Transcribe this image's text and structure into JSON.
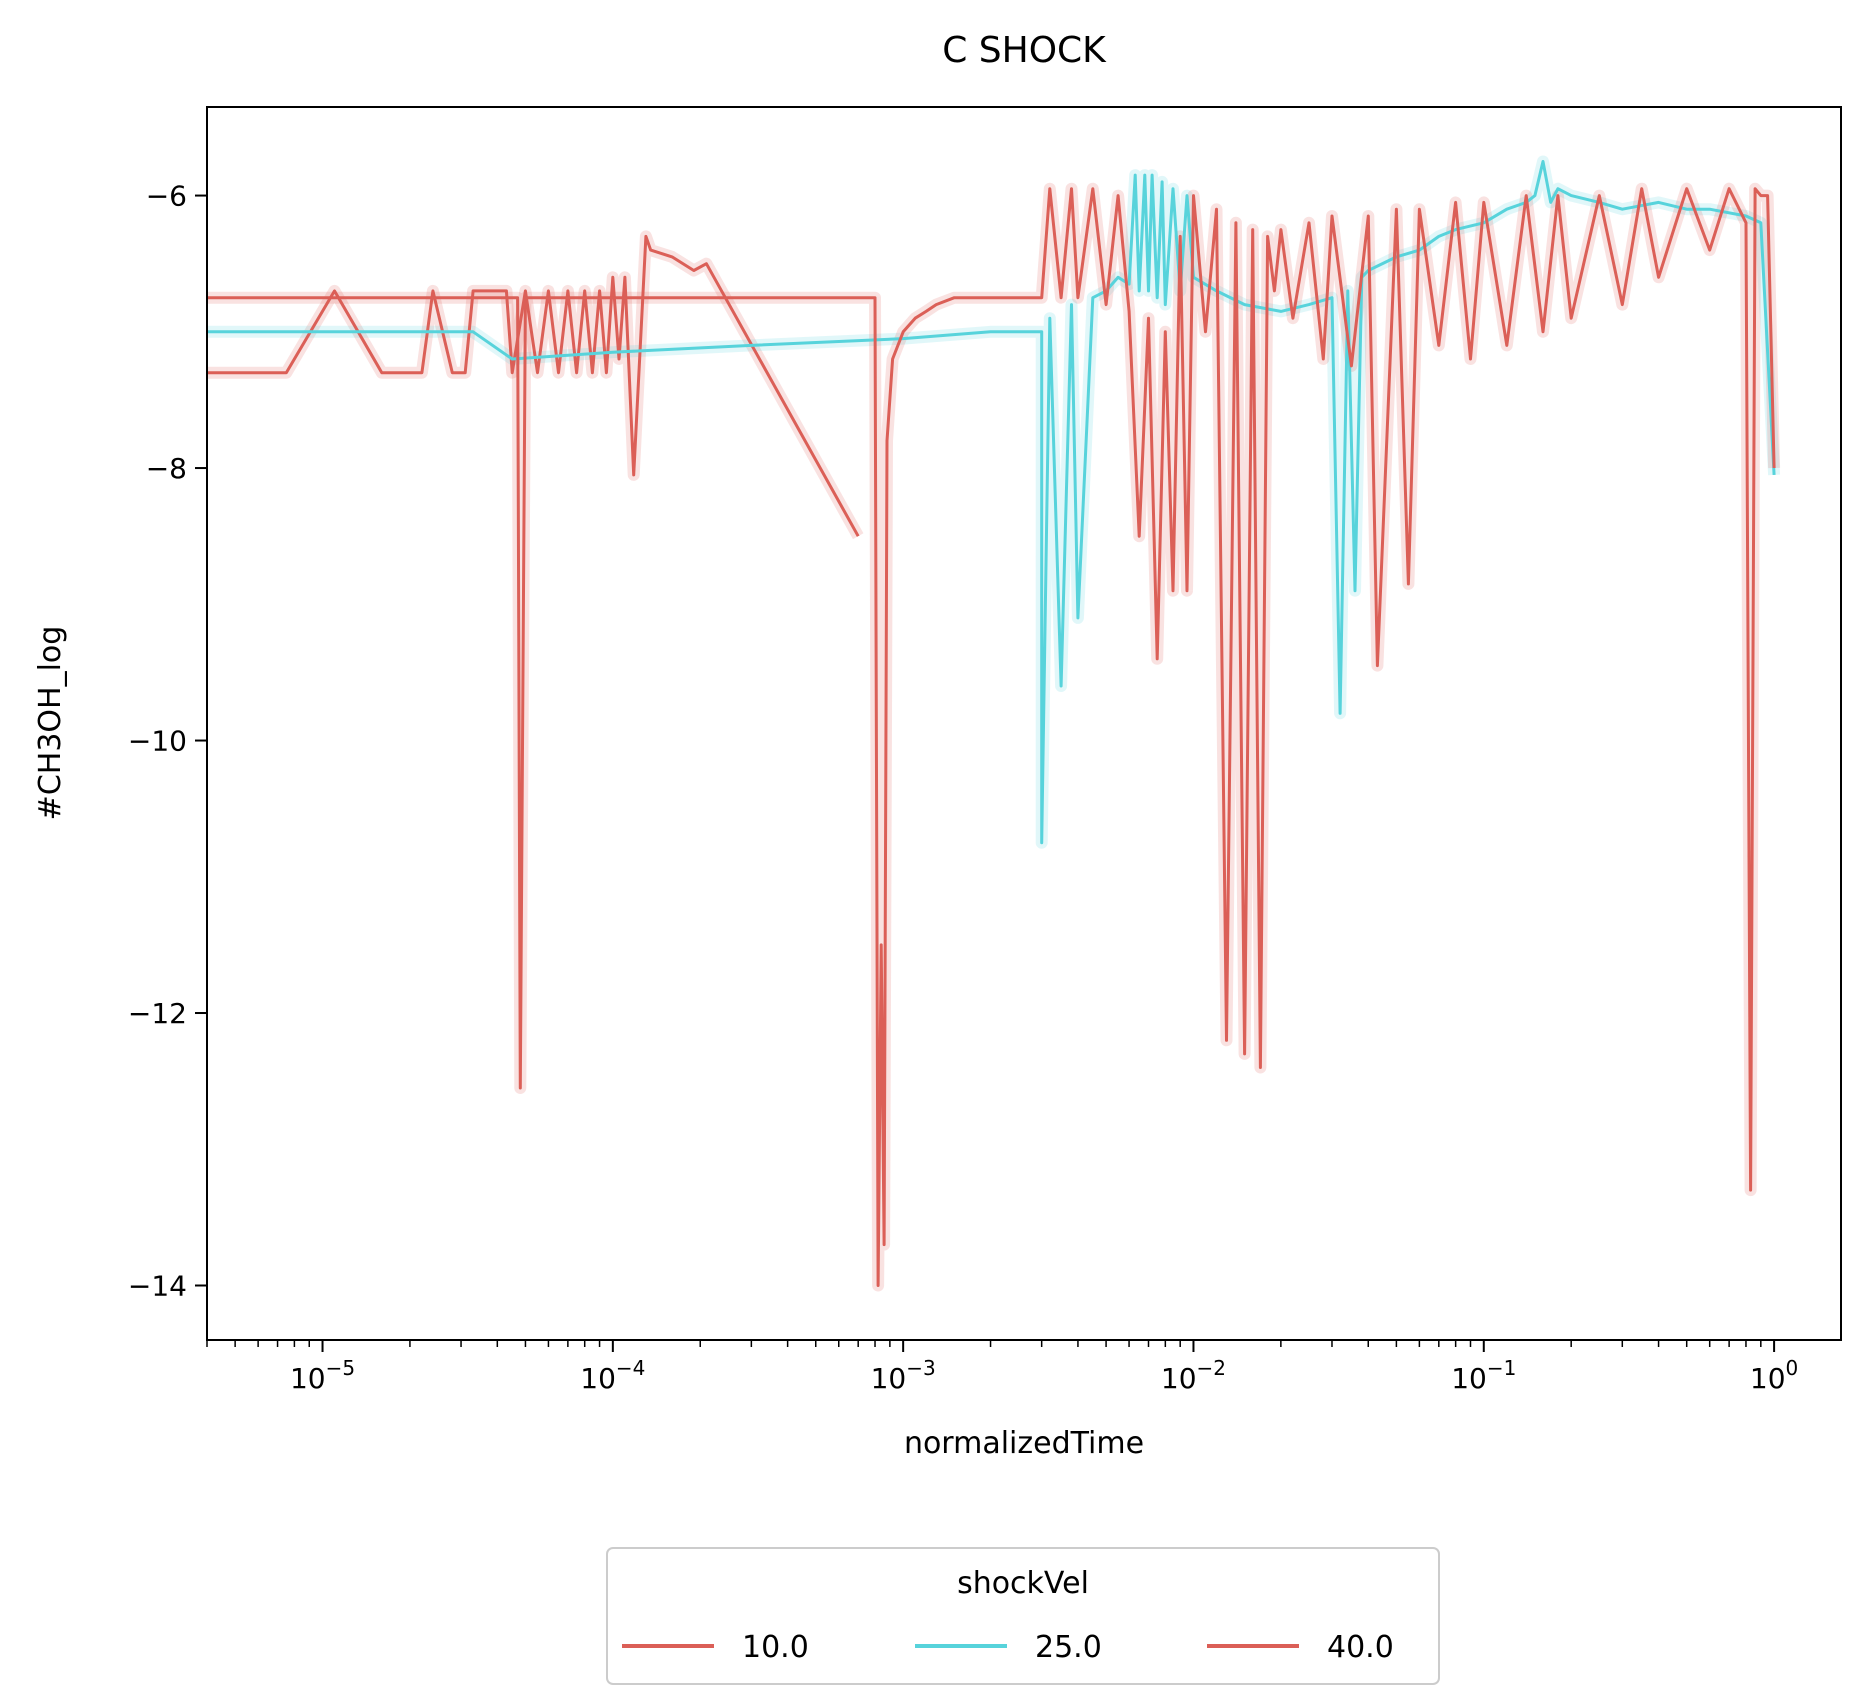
{
  "chart_data": {
    "type": "line",
    "title": "C SHOCK",
    "xlabel": "normalizedTime",
    "ylabel": "#CH3OH_log",
    "xscale": "log",
    "xlim": [
      4e-06,
      1.7
    ],
    "ylim": [
      -14.4,
      -5.35
    ],
    "x_ticks": [
      1e-05,
      0.0001,
      0.001,
      0.01,
      0.1,
      1
    ],
    "x_tick_labels": [
      {
        "base": "10",
        "exp": "−5"
      },
      {
        "base": "10",
        "exp": "−4"
      },
      {
        "base": "10",
        "exp": "−3"
      },
      {
        "base": "10",
        "exp": "−2"
      },
      {
        "base": "10",
        "exp": "−1"
      },
      {
        "base": "10",
        "exp": "0"
      }
    ],
    "y_ticks": [
      -6,
      -8,
      -10,
      -12,
      -14
    ],
    "y_tick_labels": [
      "−6",
      "−8",
      "−10",
      "−12",
      "−14"
    ],
    "grid": false,
    "legend": {
      "title": "shockVel",
      "placement": "bottom-center",
      "entries": [
        "10.0",
        "25.0",
        "40.0"
      ]
    },
    "colors": {
      "10.0": "#db5f57",
      "25.0": "#57d3db",
      "40.0": "#db5f57"
    },
    "series": [
      {
        "name": "10.0",
        "x": [
          4e-06,
          7.5e-06,
          1.1e-05,
          1.6e-05,
          2.2e-05,
          2.4e-05,
          2.8e-05,
          3.1e-05,
          3.3e-05,
          4.3e-05,
          4.5e-05,
          5e-05,
          5.5e-05,
          6e-05,
          6.5e-05,
          7e-05,
          7.5e-05,
          8e-05,
          8.5e-05,
          9e-05,
          9.5e-05,
          0.0001,
          0.000105,
          0.00011,
          0.000118,
          0.00013,
          0.000135,
          0.00016,
          0.00019,
          0.00021,
          0.0007
        ],
        "y": [
          -7.3,
          -7.3,
          -6.7,
          -7.3,
          -7.3,
          -6.7,
          -7.3,
          -7.3,
          -6.7,
          -6.7,
          -7.3,
          -6.7,
          -7.3,
          -6.7,
          -7.3,
          -6.7,
          -7.3,
          -6.7,
          -7.3,
          -6.7,
          -7.3,
          -6.6,
          -7.2,
          -6.6,
          -8.05,
          -6.3,
          -6.4,
          -6.45,
          -6.55,
          -6.5,
          -8.5
        ]
      },
      {
        "name": "25.0",
        "x": [
          4e-06,
          3.3e-05,
          4.5e-05,
          0.0001,
          0.0003,
          0.001,
          0.002,
          0.003,
          0.003,
          0.0032,
          0.0035,
          0.0038,
          0.004,
          0.0045,
          0.005,
          0.0055,
          0.006,
          0.0063,
          0.0065,
          0.0068,
          0.007,
          0.0072,
          0.0075,
          0.0078,
          0.008,
          0.0085,
          0.009,
          0.0095,
          0.01,
          0.012,
          0.015,
          0.02,
          0.025,
          0.03,
          0.032,
          0.034,
          0.036,
          0.038,
          0.04,
          0.05,
          0.06,
          0.07,
          0.08,
          0.1,
          0.12,
          0.14,
          0.15,
          0.16,
          0.17,
          0.18,
          0.2,
          0.25,
          0.3,
          0.4,
          0.5,
          0.6,
          0.8,
          0.9,
          1.0
        ],
        "y": [
          -7.0,
          -7.0,
          -7.2,
          -7.15,
          -7.1,
          -7.05,
          -7.0,
          -7.0,
          -10.75,
          -6.9,
          -9.6,
          -6.8,
          -9.1,
          -6.75,
          -6.7,
          -6.6,
          -6.65,
          -5.85,
          -6.7,
          -5.85,
          -6.7,
          -5.85,
          -6.75,
          -5.9,
          -6.8,
          -5.95,
          -6.7,
          -6.0,
          -6.6,
          -6.7,
          -6.8,
          -6.85,
          -6.8,
          -6.75,
          -9.8,
          -6.7,
          -8.9,
          -6.6,
          -6.55,
          -6.45,
          -6.4,
          -6.3,
          -6.25,
          -6.2,
          -6.1,
          -6.05,
          -6.0,
          -5.75,
          -6.05,
          -5.95,
          -6.0,
          -6.05,
          -6.1,
          -6.05,
          -6.1,
          -6.1,
          -6.15,
          -6.2,
          -8.05
        ]
      },
      {
        "name": "40.0",
        "x": [
          4e-06,
          4.7e-05,
          4.8e-05,
          5e-05,
          0.00025,
          0.0008,
          0.00082,
          0.00084,
          0.00086,
          0.00088,
          0.00092,
          0.001,
          0.0011,
          0.0012,
          0.0013,
          0.0015,
          0.0018,
          0.002,
          0.0023,
          0.0027,
          0.003,
          0.0032,
          0.0035,
          0.0038,
          0.004,
          0.0045,
          0.005,
          0.0055,
          0.006,
          0.0065,
          0.007,
          0.0075,
          0.008,
          0.0085,
          0.009,
          0.0095,
          0.01,
          0.011,
          0.012,
          0.013,
          0.014,
          0.015,
          0.016,
          0.017,
          0.018,
          0.019,
          0.02,
          0.022,
          0.025,
          0.028,
          0.03,
          0.035,
          0.04,
          0.043,
          0.05,
          0.055,
          0.06,
          0.07,
          0.08,
          0.09,
          0.1,
          0.12,
          0.14,
          0.16,
          0.18,
          0.2,
          0.25,
          0.3,
          0.35,
          0.4,
          0.5,
          0.6,
          0.7,
          0.8,
          0.83,
          0.86,
          0.9,
          0.95,
          1.0
        ],
        "y": [
          -6.75,
          -6.75,
          -12.55,
          -6.75,
          -6.75,
          -6.75,
          -14.0,
          -11.5,
          -13.7,
          -7.8,
          -7.2,
          -7.0,
          -6.9,
          -6.85,
          -6.8,
          -6.75,
          -6.75,
          -6.75,
          -6.75,
          -6.75,
          -6.75,
          -5.95,
          -6.75,
          -5.95,
          -6.75,
          -5.95,
          -6.8,
          -6.0,
          -6.85,
          -8.5,
          -6.9,
          -9.4,
          -7.0,
          -8.9,
          -6.3,
          -8.9,
          -6.0,
          -7.0,
          -6.1,
          -12.2,
          -6.2,
          -12.3,
          -6.25,
          -12.4,
          -6.3,
          -6.7,
          -6.25,
          -6.9,
          -6.2,
          -7.2,
          -6.15,
          -7.25,
          -6.15,
          -9.45,
          -6.1,
          -8.85,
          -6.1,
          -7.1,
          -6.05,
          -7.2,
          -6.05,
          -7.1,
          -6.0,
          -7.0,
          -6.0,
          -6.9,
          -6.0,
          -6.8,
          -5.95,
          -6.6,
          -5.95,
          -6.4,
          -5.95,
          -6.2,
          -13.3,
          -5.95,
          -6.0,
          -6.0,
          -8.0
        ]
      }
    ]
  }
}
